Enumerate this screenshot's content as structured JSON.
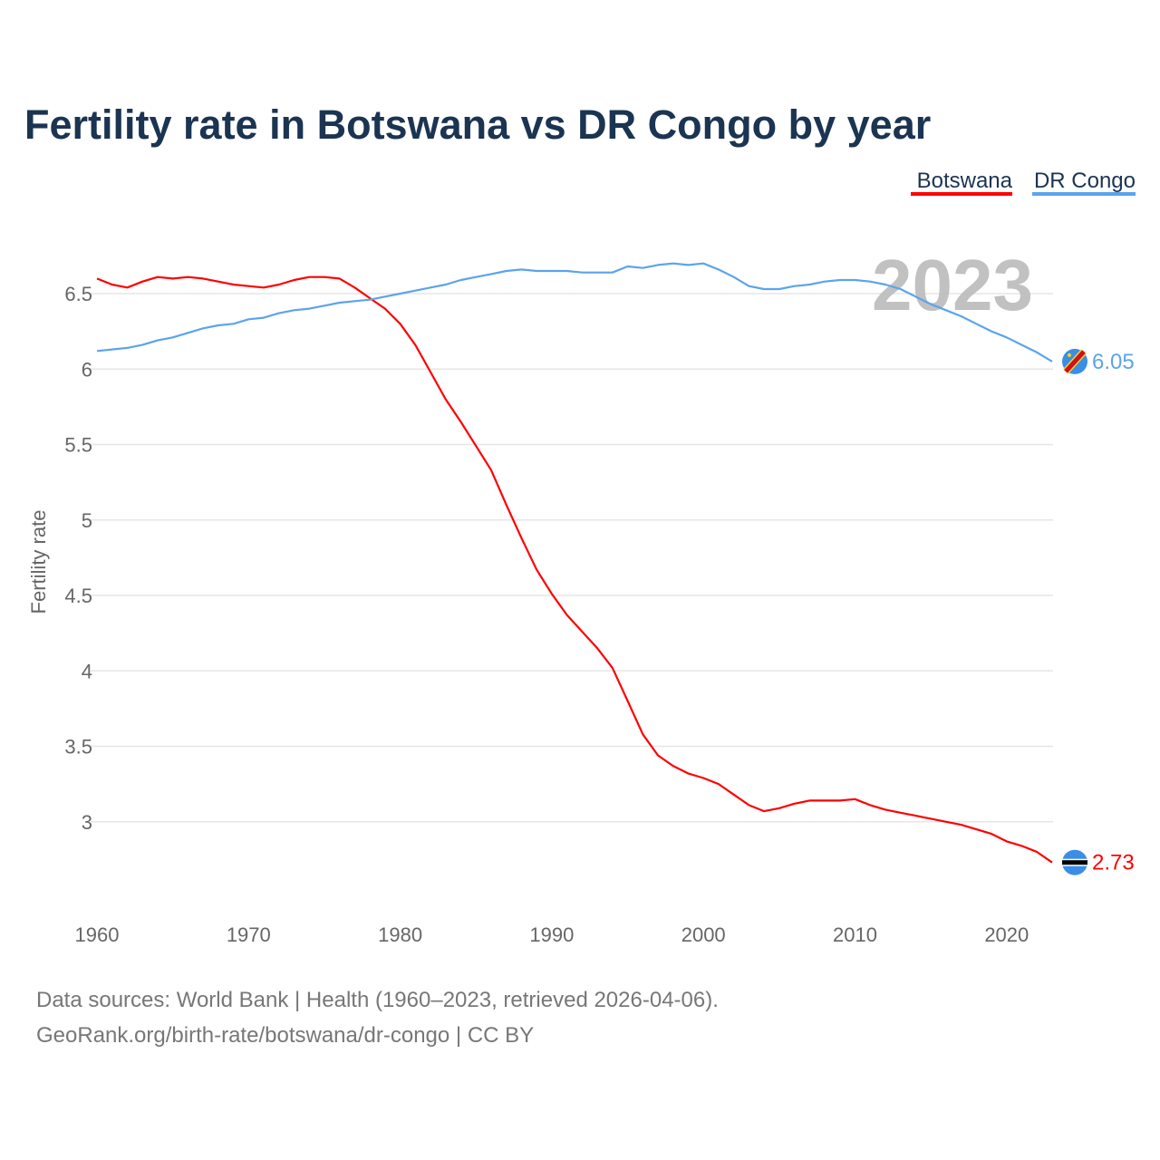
{
  "chart_data": {
    "type": "line",
    "title": "Fertility rate in Botswana vs DR Congo by year",
    "xlabel": "",
    "ylabel": "Fertility rate",
    "xlim": [
      1960,
      2023
    ],
    "ylim": [
      2.5,
      6.8
    ],
    "x_ticks": [
      1960,
      1970,
      1980,
      1990,
      2000,
      2010,
      2020
    ],
    "y_ticks": [
      3,
      3.5,
      4,
      4.5,
      5,
      5.5,
      6,
      6.5
    ],
    "y_tick_labels": [
      "3",
      "3.5",
      "4",
      "4.5",
      "5",
      "5.5",
      "6",
      "6.5"
    ],
    "x_tick_labels": [
      "1960",
      "1970",
      "1980",
      "1990",
      "2000",
      "2010",
      "2020"
    ],
    "grid": true,
    "legend_position": "top-right",
    "year_annotation": "2023",
    "x": [
      1960,
      1961,
      1962,
      1963,
      1964,
      1965,
      1966,
      1967,
      1968,
      1969,
      1970,
      1971,
      1972,
      1973,
      1974,
      1975,
      1976,
      1977,
      1978,
      1979,
      1980,
      1981,
      1982,
      1983,
      1984,
      1985,
      1986,
      1987,
      1988,
      1989,
      1990,
      1991,
      1992,
      1993,
      1994,
      1995,
      1996,
      1997,
      1998,
      1999,
      2000,
      2001,
      2002,
      2003,
      2004,
      2005,
      2006,
      2007,
      2008,
      2009,
      2010,
      2011,
      2012,
      2013,
      2014,
      2015,
      2016,
      2017,
      2018,
      2019,
      2020,
      2021,
      2022,
      2023
    ],
    "series": [
      {
        "name": "Botswana",
        "color": "#ff0000",
        "end_label": "2.73",
        "values": [
          6.6,
          6.56,
          6.54,
          6.58,
          6.61,
          6.6,
          6.61,
          6.6,
          6.58,
          6.56,
          6.55,
          6.54,
          6.56,
          6.59,
          6.61,
          6.61,
          6.6,
          6.54,
          6.47,
          6.4,
          6.3,
          6.16,
          5.98,
          5.8,
          5.65,
          5.49,
          5.33,
          5.1,
          4.88,
          4.67,
          4.51,
          4.37,
          4.26,
          4.15,
          4.02,
          3.8,
          3.58,
          3.44,
          3.37,
          3.32,
          3.29,
          3.25,
          3.18,
          3.11,
          3.07,
          3.09,
          3.12,
          3.14,
          3.14,
          3.14,
          3.15,
          3.11,
          3.08,
          3.06,
          3.04,
          3.02,
          3.0,
          2.98,
          2.95,
          2.92,
          2.87,
          2.84,
          2.8,
          2.73
        ]
      },
      {
        "name": "DR Congo",
        "color": "#5ba4ec",
        "end_label": "6.05",
        "values": [
          6.12,
          6.13,
          6.14,
          6.16,
          6.19,
          6.21,
          6.24,
          6.27,
          6.29,
          6.3,
          6.33,
          6.34,
          6.37,
          6.39,
          6.4,
          6.42,
          6.44,
          6.45,
          6.46,
          6.48,
          6.5,
          6.52,
          6.54,
          6.56,
          6.59,
          6.61,
          6.63,
          6.65,
          6.66,
          6.65,
          6.65,
          6.65,
          6.64,
          6.64,
          6.64,
          6.68,
          6.67,
          6.69,
          6.7,
          6.69,
          6.7,
          6.66,
          6.61,
          6.55,
          6.53,
          6.53,
          6.55,
          6.56,
          6.58,
          6.59,
          6.59,
          6.58,
          6.56,
          6.53,
          6.48,
          6.43,
          6.39,
          6.35,
          6.3,
          6.25,
          6.21,
          6.16,
          6.11,
          6.05
        ]
      }
    ]
  },
  "footer": {
    "line1": "Data sources: World Bank | Health (1960–2023, retrieved 2026-04-06).",
    "line2": "GeoRank.org/birth-rate/botswana/dr-congo | CC BY"
  }
}
